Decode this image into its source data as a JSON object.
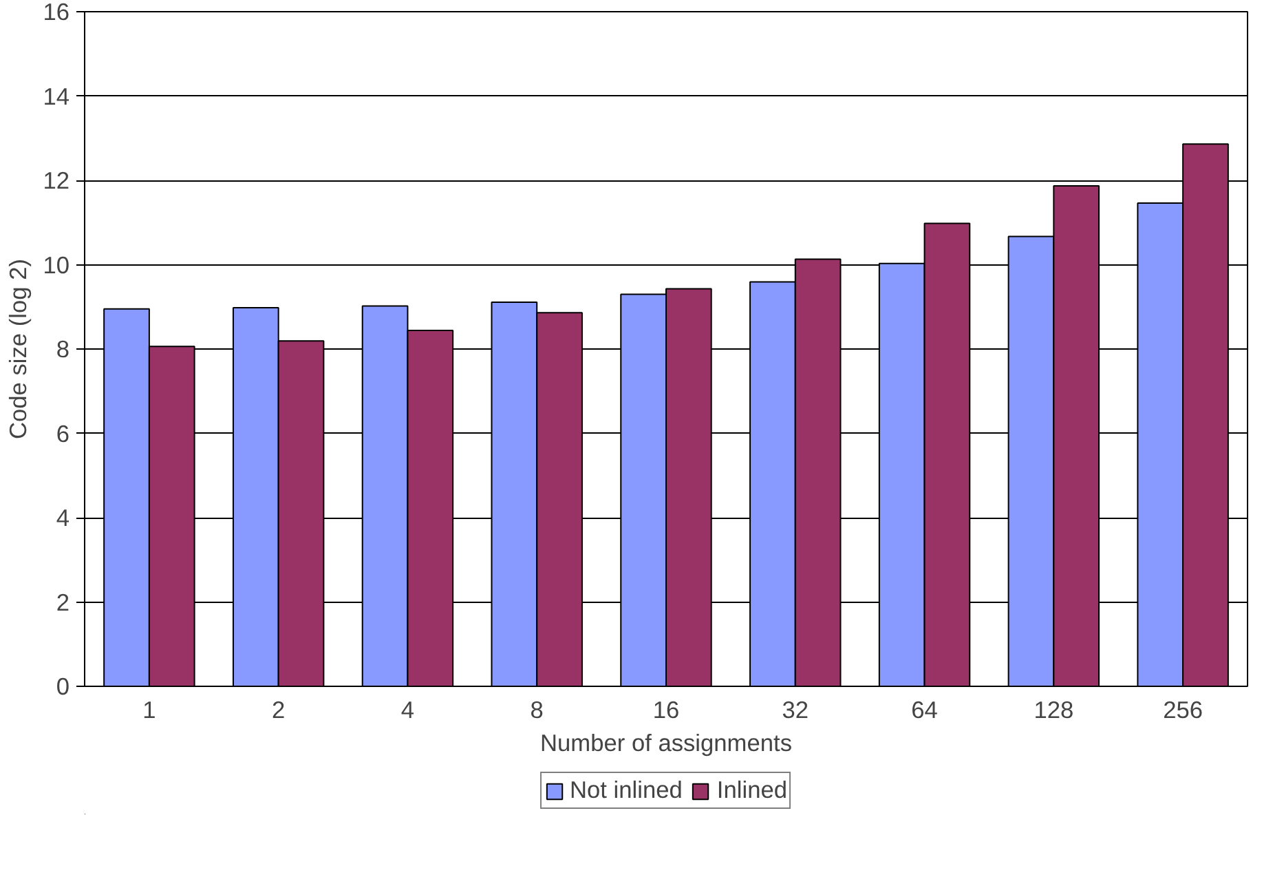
{
  "chart_data": {
    "type": "bar",
    "xlabel": "Number of assignments",
    "ylabel": "Code size (log 2)",
    "categories": [
      "1",
      "2",
      "4",
      "8",
      "16",
      "32",
      "64",
      "128",
      "256"
    ],
    "series": [
      {
        "name": "Not inlined",
        "color": "#8899ff",
        "values": [
          8.95,
          8.98,
          9.02,
          9.11,
          9.3,
          9.59,
          10.03,
          10.67,
          11.46
        ]
      },
      {
        "name": "Inlined",
        "color": "#993366",
        "values": [
          8.06,
          8.19,
          8.44,
          8.86,
          9.43,
          10.13,
          10.98,
          11.87,
          12.86
        ]
      }
    ],
    "ylim": [
      0,
      16
    ],
    "yticks": [
      0,
      2,
      4,
      6,
      8,
      10,
      12,
      14,
      16
    ],
    "grid": "y",
    "legend": "bottom"
  }
}
